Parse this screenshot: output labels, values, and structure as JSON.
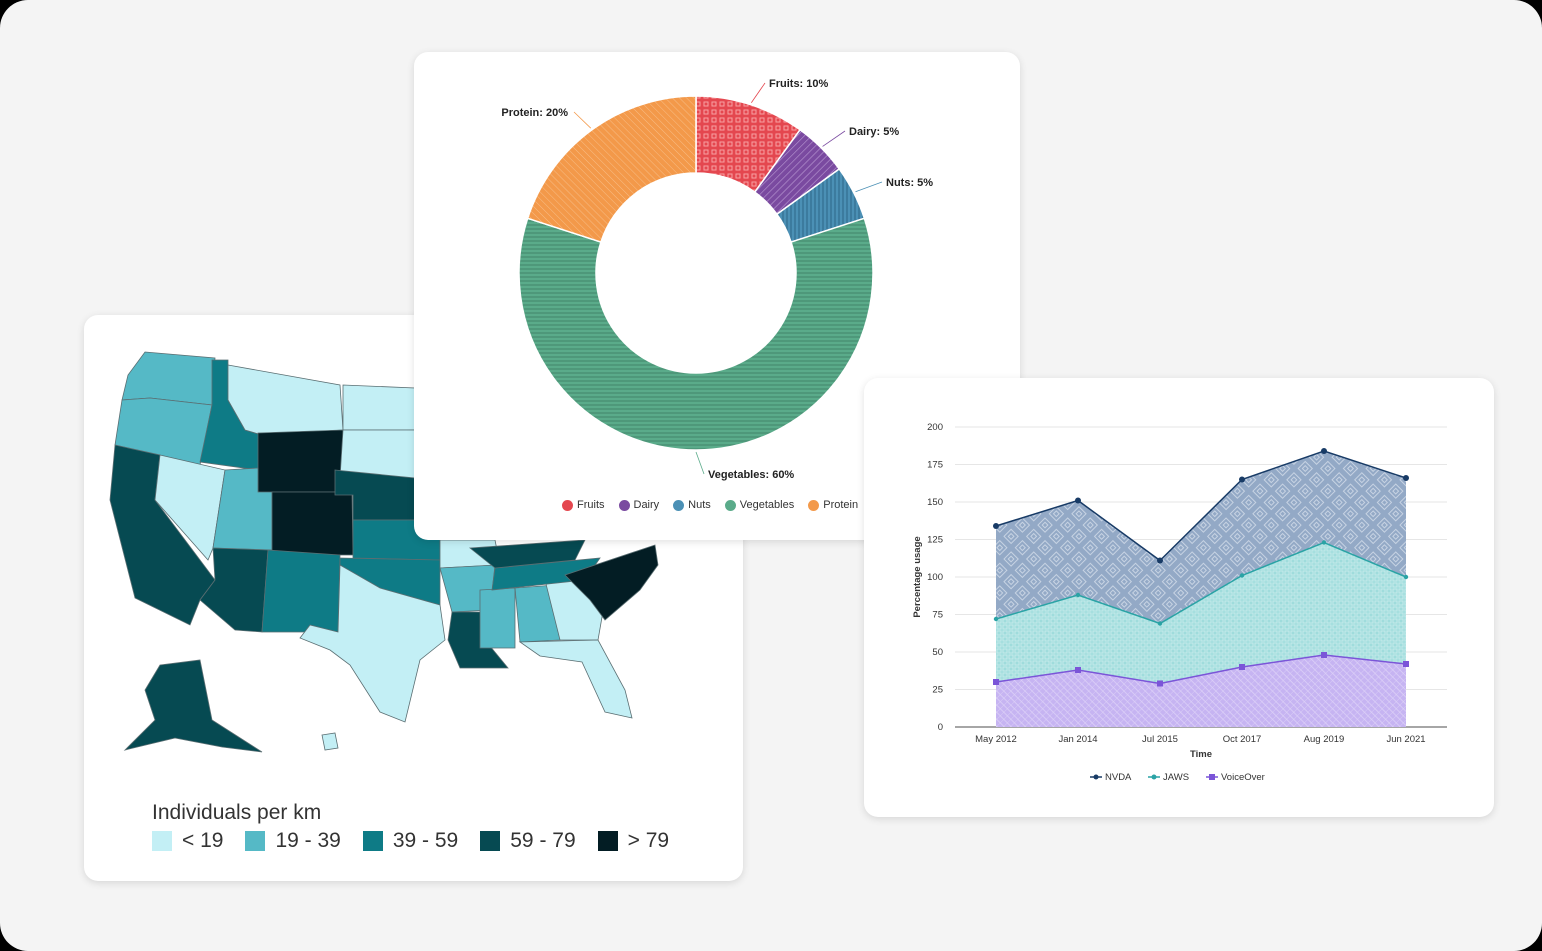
{
  "chart_data": [
    {
      "type": "choropleth",
      "legend_title": "Individuals per km",
      "bins": [
        {
          "label": "< 19",
          "color": "#c3eff5"
        },
        {
          "label": "19 - 39",
          "color": "#55b9c6"
        },
        {
          "label": "39 - 59",
          "color": "#0e7b86"
        },
        {
          "label": "59 - 79",
          "color": "#064a52"
        },
        {
          "label": "> 79",
          "color": "#031d24"
        }
      ],
      "regions": {
        "WA": 1,
        "OR": 1,
        "CA": 3,
        "NV": 0,
        "ID": 2,
        "MT": 0,
        "WY": 4,
        "UT": 1,
        "CO": 4,
        "AZ": 3,
        "NM": 2,
        "ND": 0,
        "SD": 0,
        "NE": 3,
        "KS": 2,
        "OK": 2,
        "TX": 0,
        "MO": 0,
        "AR": 1,
        "LA": 3,
        "MS": 1,
        "AL": 1,
        "GA": 0,
        "FL": 0,
        "TN": 2,
        "KY": 3,
        "NC": 4,
        "AK": 3,
        "HI": 0
      }
    },
    {
      "type": "pie",
      "donut": true,
      "categories": [
        "Fruits",
        "Dairy",
        "Nuts",
        "Vegetables",
        "Protein"
      ],
      "values": [
        10,
        5,
        5,
        60,
        20
      ],
      "data_labels": [
        "Fruits: 10%",
        "Dairy: 5%",
        "Nuts: 5%",
        "Vegetables: 60%",
        "Protein: 20%"
      ],
      "colors": [
        "#e4474f",
        "#7a4aa0",
        "#4b90b5",
        "#5aab8a",
        "#f3994a"
      ],
      "legend": "bottom"
    },
    {
      "type": "area",
      "stacked": true,
      "categories": [
        "May 2012",
        "Jan 2014",
        "Jul 2015",
        "Oct 2017",
        "Aug 2019",
        "Jun 2021"
      ],
      "series": [
        {
          "name": "VoiceOver",
          "values": [
            30,
            38,
            29,
            40,
            48,
            42
          ],
          "color": "#7b55d8",
          "fill": "#c6b4f2"
        },
        {
          "name": "JAWS",
          "values": [
            42,
            50,
            40,
            61,
            75,
            58
          ],
          "color": "#2aa3a5",
          "fill": "#9fdcdc"
        },
        {
          "name": "NVDA",
          "values": [
            62,
            63,
            42,
            64,
            61,
            66
          ],
          "color": "#183b66",
          "fill": "#93a9c6"
        }
      ],
      "xlabel": "Time",
      "ylabel": "Percentage usage",
      "ylim": [
        0,
        200
      ],
      "yticks": [
        0,
        25,
        50,
        75,
        100,
        125,
        150,
        175,
        200
      ],
      "grid": true,
      "legend": "bottom",
      "legend_order": [
        "NVDA",
        "JAWS",
        "VoiceOver"
      ]
    }
  ]
}
